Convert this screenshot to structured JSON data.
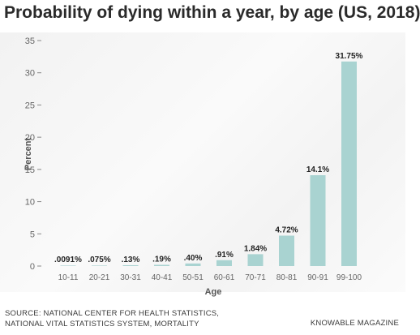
{
  "title": "Probability of dying within a year, by age (US, 2018)",
  "footer": {
    "source_line1": "SOURCE: NATIONAL CENTER FOR HEALTH STATISTICS,",
    "source_line2": "NATIONAL VITAL STATISTICS SYSTEM, MORTALITY",
    "credit": "KNOWABLE MAGAZINE"
  },
  "colors": {
    "bar": "#a9d3d1",
    "text": "#2a2a2a",
    "axis": "#888888"
  },
  "chart_data": {
    "type": "bar",
    "title": "Probability of dying within a year, by age (US, 2018)",
    "xlabel": "Age",
    "ylabel": "Percent",
    "ylim": [
      0,
      35
    ],
    "yticks": [
      0,
      5,
      10,
      15,
      20,
      25,
      30,
      35
    ],
    "grid": false,
    "categories": [
      "10-11",
      "20-21",
      "30-31",
      "40-41",
      "50-51",
      "60-61",
      "70-71",
      "80-81",
      "90-91",
      "99-100"
    ],
    "values": [
      0.0091,
      0.075,
      0.13,
      0.19,
      0.4,
      0.91,
      1.84,
      4.72,
      14.1,
      31.75
    ],
    "data_labels": [
      ".0091%",
      ".075%",
      ".13%",
      ".19%",
      ".40%",
      ".91%",
      "1.84%",
      "4.72%",
      "14.1%",
      "31.75%"
    ]
  }
}
